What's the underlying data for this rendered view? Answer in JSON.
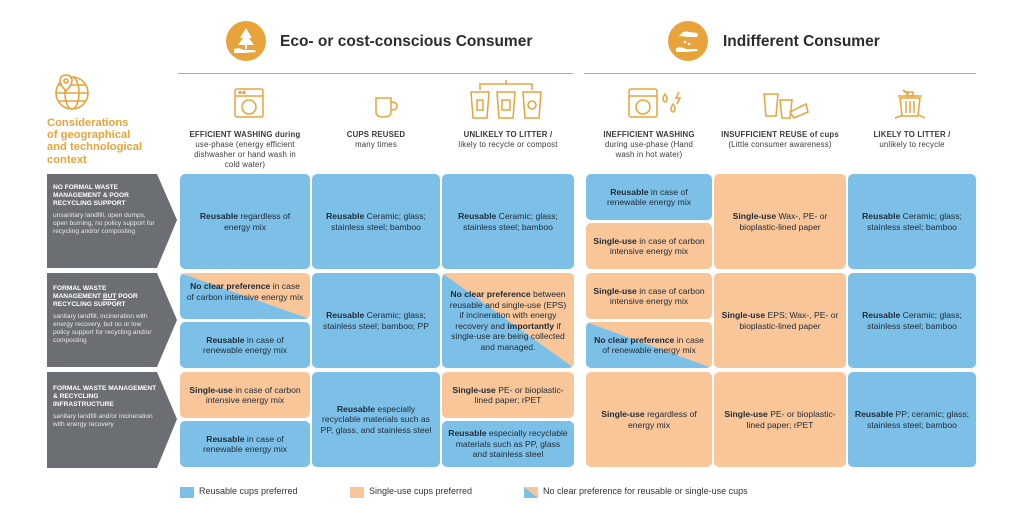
{
  "header": {
    "eco_title": "Eco- or cost-conscious Consumer",
    "indiff_title": "Indifferent Consumer"
  },
  "considerations": {
    "lines": [
      "Considerations",
      "of geographical",
      "and technological",
      "context"
    ]
  },
  "columns": [
    {
      "title": "EFFICIENT WASHING during",
      "sub": [
        "use-phase (energy efficient",
        "dishwasher or hand wash in",
        "cold water)"
      ]
    },
    {
      "title": "CUPS REUSED",
      "sub": [
        "many times"
      ]
    },
    {
      "title": "UNLIKELY TO LITTER /",
      "sub": [
        "likely to recycle or compost"
      ]
    },
    {
      "title": "INEFFICIENT WASHING",
      "sub": [
        "during use-phase (Hand",
        "wash in hot water)"
      ]
    },
    {
      "title": "INSUFFICIENT REUSE of cups",
      "sub": [
        "(Little consumer awareness)"
      ]
    },
    {
      "title": "LIKELY TO LITTER /",
      "sub": [
        "unlikely to recycle"
      ]
    }
  ],
  "rows": [
    {
      "title": "NO FORMAL WASTE MANAGEMENT & POOR RECYCLING SUPPORT",
      "desc": "unsanitary landfill, open dumps, open burning, no policy support for recycling and/or composting"
    },
    {
      "title_pre": "FORMAL WASTE MANAGEMENT ",
      "title_u": "BUT",
      "title_post": " POOR RECYCLING SUPPORT",
      "desc": "sanitary landfill, incineration with energy recovery, but no or low policy support for recycling and/or composting"
    },
    {
      "title": "FORMAL WASTE MANAGEMENT & RECYCLING INFRASTRUCTURE",
      "desc": "sanitary landfill and/or incineration with energy recovery"
    }
  ],
  "cells": {
    "r1c1": {
      "b": "Reusable",
      "t": " regardless of energy mix"
    },
    "r1c2": {
      "b": "Reusable",
      "t": " Ceramic; glass; stainless steel; bamboo"
    },
    "r1c3": {
      "b": "Reusable",
      "t": " Ceramic; glass; stainless steel; bamboo"
    },
    "r1c4a": {
      "b": "Reusable",
      "t": " in case of renewable energy mix"
    },
    "r1c4b": {
      "b": "Single-use",
      "t": " in case of carbon intensive energy mix"
    },
    "r1c5": {
      "b": "Single-use",
      "t": " Wax-, PE- or bioplastic-lined paper"
    },
    "r1c6": {
      "b": "Reusable",
      "t": " Ceramic; glass; stainless steel; bamboo"
    },
    "r2c1a": {
      "b": "No clear preference",
      "t": " in case of carbon intensive energy mix"
    },
    "r2c1b": {
      "b": "Reusable",
      "t": " in case of renewable energy mix"
    },
    "r2c2": {
      "b": "Reusable",
      "t": " Ceramic; glass; stainless steel; bamboo; PP"
    },
    "r2c3": {
      "b": "No clear preference",
      "t1": " between reusable and single-use (EPS) if incineration with energy recovery and ",
      "b2": "importantly",
      "t2": " if single-use are being collected and managed."
    },
    "r2c4a": {
      "b": "Single-use",
      "t": " in case of carbon intensive energy mix"
    },
    "r2c4b": {
      "b": "No clear preference",
      "t": " in case of renewable energy mix"
    },
    "r2c5": {
      "b": "Single-use",
      "t": " EPS; Wax-, PE- or bioplastic-lined paper"
    },
    "r2c6": {
      "b": "Reusable",
      "t": " Ceramic; glass; stainless steel; bamboo"
    },
    "r3c1a": {
      "b": "Single-use",
      "t": " in case of carbon intensive energy mix"
    },
    "r3c1b": {
      "b": "Reusable",
      "t": " in case of renewable energy mix"
    },
    "r3c2": {
      "b": "Reusable",
      "t": " especially recyclable materials such as PP, glass, and stainless steel"
    },
    "r3c3a": {
      "b": "Single-use",
      "t": " PE- or bioplastic-lined paper; rPET"
    },
    "r3c3b": {
      "b": "Reusable",
      "t": " especially recyclable materials such as PP, glass and stainless steel"
    },
    "r3c4": {
      "b": "Single-use",
      "t": " regardless of energy mix"
    },
    "r3c5": {
      "b": "Single-use",
      "t": " PE- or bioplastic-lined paper; rPET"
    },
    "r3c6": {
      "b": "Reusable",
      "t": " PP; ceramic; glass; stainless steel; bamboo"
    }
  },
  "legend": {
    "reusable": "Reusable cups preferred",
    "single": "Single-use cups preferred",
    "mixed": "No clear preference for reusable or single-use cups"
  },
  "colors": {
    "blue": "#7cc0e8",
    "orange": "#f9c69a",
    "accent": "#e8a33a",
    "arrow": "#6b6e73"
  },
  "icons": [
    "consumer-hand-tree-icon",
    "consumer-hand-wash-icon",
    "globe-location-icon",
    "dishwasher-icon",
    "cup-icon",
    "recycle-bins-icon",
    "dishwasher-hot-icon",
    "cups-discarded-icon",
    "trash-can-icon"
  ]
}
